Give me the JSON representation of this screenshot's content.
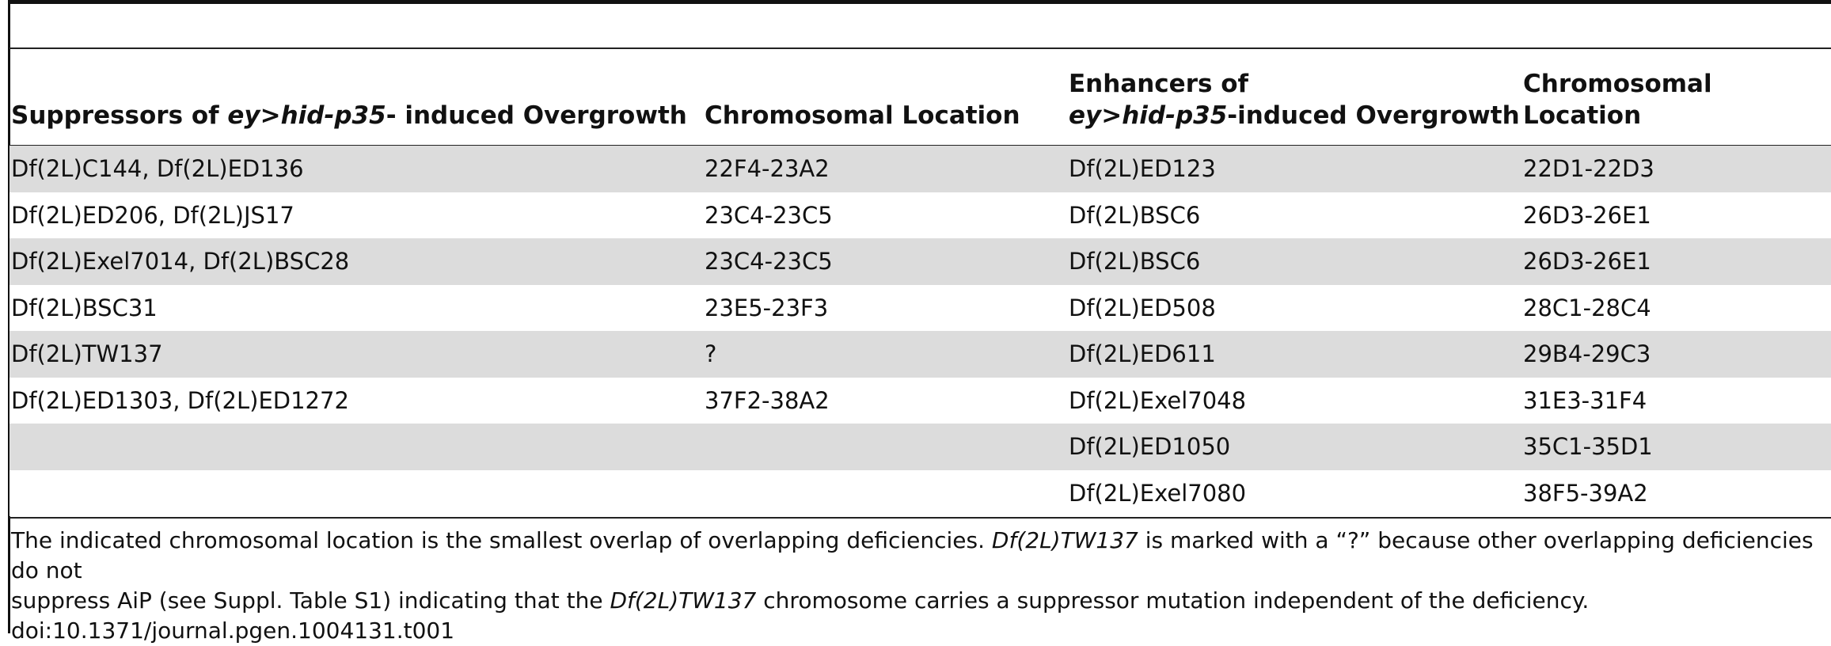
{
  "table": {
    "headers": {
      "suppressors": {
        "prefix": "Suppressors of ",
        "genotype": "ey>hid-p35",
        "suffix": "- induced Overgrowth"
      },
      "location_1": "Chromosomal Location",
      "enhancers": {
        "line1": "Enhancers of",
        "genotype": "ey>hid-p35",
        "suffix": "-induced Overgrowth"
      },
      "location_2": "Chromosomal Location"
    },
    "rows": [
      {
        "suppressor": "Df(2L)C144, Df(2L)ED136",
        "sup_location": "22F4-23A2",
        "enhancer": "Df(2L)ED123",
        "enh_location": "22D1-22D3"
      },
      {
        "suppressor": "Df(2L)ED206, Df(2L)JS17",
        "sup_location": "23C4-23C5",
        "enhancer": "Df(2L)BSC6",
        "enh_location": "26D3-26E1"
      },
      {
        "suppressor": "Df(2L)Exel7014, Df(2L)BSC28",
        "sup_location": "23C4-23C5",
        "enhancer": "Df(2L)BSC6",
        "enh_location": "26D3-26E1"
      },
      {
        "suppressor": "Df(2L)BSC31",
        "sup_location": "23E5-23F3",
        "enhancer": "Df(2L)ED508",
        "enh_location": "28C1-28C4"
      },
      {
        "suppressor": "Df(2L)TW137",
        "sup_location": "?",
        "enhancer": "Df(2L)ED611",
        "enh_location": "29B4-29C3"
      },
      {
        "suppressor": "Df(2L)ED1303, Df(2L)ED1272",
        "sup_location": "37F2-38A2",
        "enhancer": "Df(2L)Exel7048",
        "enh_location": "31E3-31F4"
      },
      {
        "suppressor": "",
        "sup_location": "",
        "enhancer": "Df(2L)ED1050",
        "enh_location": "35C1-35D1"
      },
      {
        "suppressor": "",
        "sup_location": "",
        "enhancer": "Df(2L)Exel7080",
        "enh_location": "38F5-39A2"
      }
    ]
  },
  "footnote": {
    "t1": "The indicated chromosomal location is the smallest overlap of overlapping deficiencies. ",
    "i1": "Df(2L)TW137",
    "t2": " is marked with a “?” because other overlapping deficiencies do not",
    "t3": "suppress AiP (see Suppl. Table S1) indicating that the ",
    "i2": "Df(2L)TW137",
    "t4": " chromosome carries a suppressor mutation independent of the deficiency.",
    "doi": "doi:10.1371/journal.pgen.1004131.t001"
  }
}
